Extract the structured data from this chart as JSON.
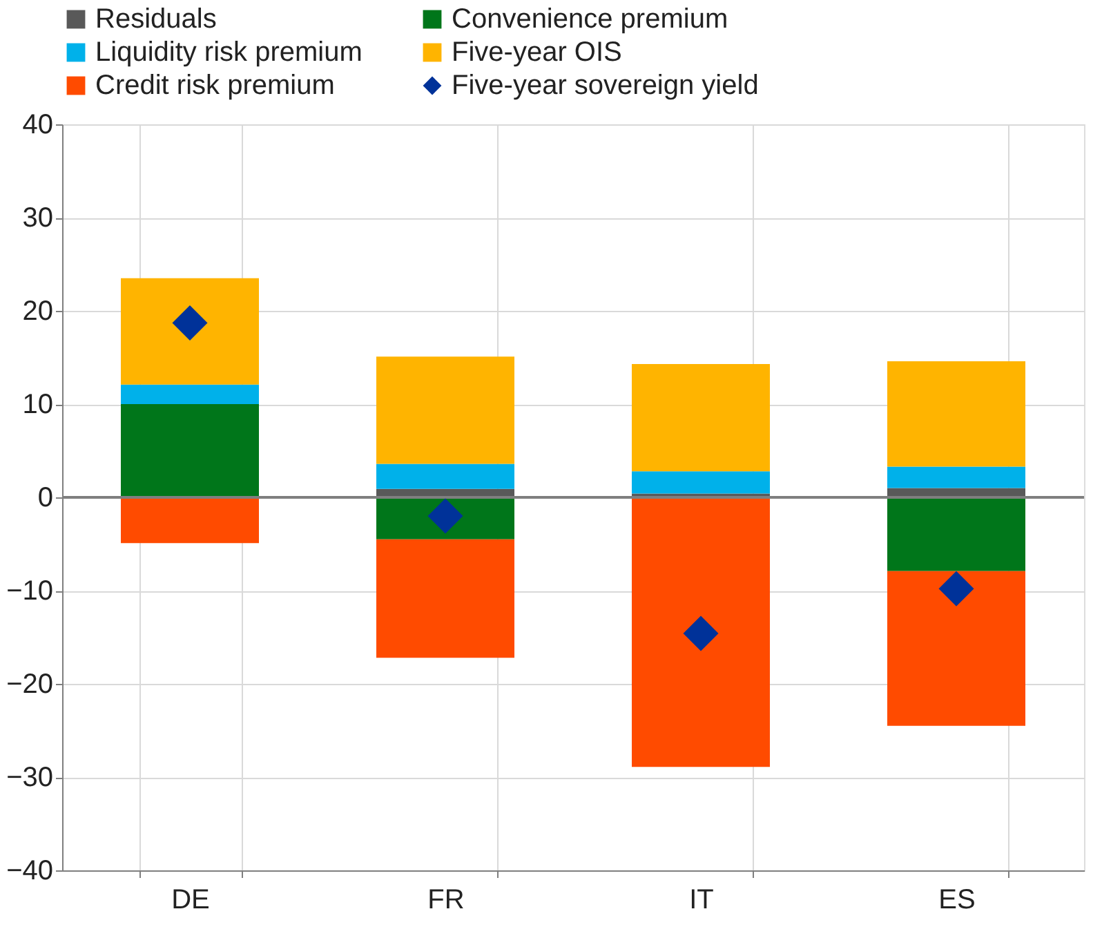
{
  "chart_data": {
    "type": "bar",
    "stacked": true,
    "categories": [
      "DE",
      "FR",
      "IT",
      "ES"
    ],
    "series": [
      {
        "name": "Residuals",
        "color": "#595959",
        "values": [
          null,
          0.9,
          0.4,
          1.0
        ]
      },
      {
        "name": "Convenience premium",
        "color": "#00761a",
        "values": [
          10.0,
          -4.5,
          null,
          -7.9
        ]
      },
      {
        "name": "Liquidity risk premium",
        "color": "#00b1ea",
        "values": [
          2.1,
          2.7,
          2.4,
          2.3
        ]
      },
      {
        "name": "Five-year OIS",
        "color": "#ffb400",
        "values": [
          11.4,
          11.5,
          11.5,
          11.3
        ]
      },
      {
        "name": "Credit risk premium",
        "color": "#ff4b00",
        "values": [
          -4.9,
          -12.7,
          -28.9,
          -16.6
        ]
      },
      {
        "name": "Five-year sovereign yield",
        "color": "#003299",
        "type": "scatter",
        "marker": "diamond",
        "values": [
          18.7,
          -2.0,
          -14.6,
          -9.8
        ]
      }
    ],
    "ylim": [
      -40,
      40
    ],
    "yticks": [
      -40,
      -30,
      -20,
      -10,
      0,
      10,
      20,
      30,
      40
    ],
    "grid": true,
    "legend": "top"
  }
}
